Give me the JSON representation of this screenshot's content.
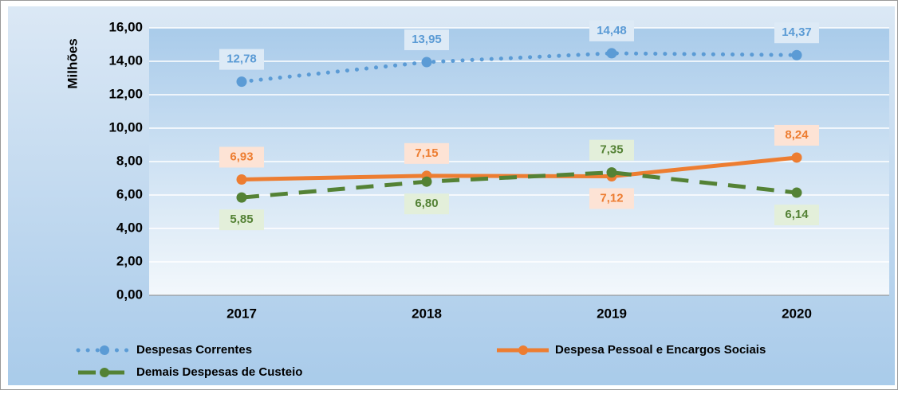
{
  "chart_data": {
    "type": "line",
    "y_label": "Milhões",
    "categories": [
      "2017",
      "2018",
      "2019",
      "2020"
    ],
    "ylim": [
      0,
      16
    ],
    "yticks": [
      {
        "value": 0,
        "label": "0,00"
      },
      {
        "value": 2,
        "label": "2,00"
      },
      {
        "value": 4,
        "label": "4,00"
      },
      {
        "value": 6,
        "label": "6,00"
      },
      {
        "value": 8,
        "label": "8,00"
      },
      {
        "value": 10,
        "label": "10,00"
      },
      {
        "value": 12,
        "label": "12,00"
      },
      {
        "value": 14,
        "label": "14,00"
      },
      {
        "value": 16,
        "label": "16,00"
      }
    ],
    "grid": true,
    "legend": "bottom",
    "series": [
      {
        "name": "Despesas Correntes",
        "color": "#5b9bd5",
        "line_style": "dotted",
        "values": [
          12.78,
          13.95,
          14.48,
          14.37
        ],
        "value_labels": [
          "12,78",
          "13,95",
          "14,48",
          "14,37"
        ]
      },
      {
        "name": "Despesa Pessoal e Encargos Sociais",
        "color": "#ed7d31",
        "line_style": "solid",
        "values": [
          6.93,
          7.15,
          7.12,
          8.24
        ],
        "value_labels": [
          "6,93",
          "7,15",
          "7,12",
          "8,24"
        ]
      },
      {
        "name": "Demais Despesas de Custeio",
        "color": "#548235",
        "line_style": "dashed",
        "values": [
          5.85,
          6.8,
          7.35,
          6.14
        ],
        "value_labels": [
          "5,85",
          "6,80",
          "7,35",
          "6,14"
        ]
      }
    ]
  }
}
